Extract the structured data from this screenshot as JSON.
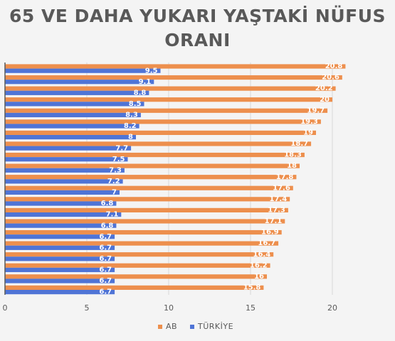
{
  "chart_data": {
    "type": "bar",
    "orientation": "horizontal",
    "title_lines": [
      "65 VE DAHA YUKARI YAŞTAKİ NÜFUS",
      "ORANI"
    ],
    "xlim": [
      0,
      25
    ],
    "xticks": [
      "0",
      "5",
      "10",
      "15",
      "20"
    ],
    "grid": true,
    "legend_position": "bottom",
    "series": [
      {
        "name": "AB",
        "color": "#ed8f4d",
        "values": [
          15.8,
          16,
          16.2,
          16.4,
          16.7,
          16.9,
          17.1,
          17.3,
          17.4,
          17.6,
          17.8,
          18,
          18.3,
          18.7,
          19,
          19.3,
          19.7,
          20,
          20.2,
          20.6,
          20.8
        ]
      },
      {
        "name": "TÜRKİYE",
        "color": "#4f74d6",
        "values": [
          6.7,
          6.7,
          6.7,
          6.7,
          6.7,
          6.7,
          6.8,
          7.1,
          6.8,
          7,
          7.2,
          7.3,
          7.5,
          7.7,
          8,
          8.2,
          8.3,
          8.5,
          8.8,
          9.1,
          9.5
        ]
      }
    ]
  }
}
